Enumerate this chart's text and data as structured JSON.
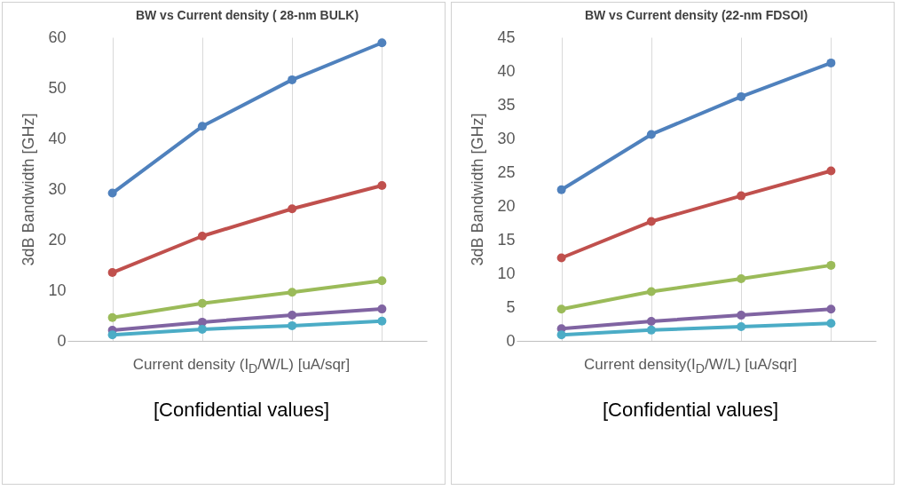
{
  "chart_data": [
    {
      "type": "line",
      "title": "BW vs Current density ( 28-nm BULK)",
      "xlabel": "Current density (I$_{D}$/W/L) [uA/sqr]",
      "ylabel": "3dB Bandwidth [GHz]",
      "annotations": [
        "[Confidential values]"
      ],
      "categories": [
        null,
        null,
        null,
        null
      ],
      "ylim": [
        0,
        60
      ],
      "yticks": [
        0,
        10,
        20,
        30,
        40,
        50,
        60
      ],
      "grid": "x",
      "legend": false,
      "marker": "circle",
      "line_style": "solid",
      "tick_labels": "y",
      "series": [
        {
          "color": "#4f81bd",
          "values": [
            29.2,
            42.4,
            51.6,
            58.9
          ]
        },
        {
          "color": "#c0504d",
          "values": [
            13.5,
            20.7,
            26.1,
            30.7
          ]
        },
        {
          "color": "#9bbb59",
          "values": [
            4.6,
            7.4,
            9.6,
            11.9
          ]
        },
        {
          "color": "#8064a2",
          "values": [
            2.1,
            3.7,
            5.1,
            6.3
          ]
        },
        {
          "color": "#4bacc6",
          "values": [
            1.2,
            2.3,
            3.0,
            3.9
          ]
        }
      ]
    },
    {
      "type": "line",
      "title": "BW vs Current density (22-nm FDSOI)",
      "xlabel": "Current density(I$_{D}$/W/L) [uA/sqr]",
      "ylabel": "3dB  Bandwidth [GHz]",
      "annotations": [
        "[Confidential values]"
      ],
      "categories": [
        null,
        null,
        null,
        null
      ],
      "ylim": [
        0,
        45
      ],
      "yticks": [
        0,
        5,
        10,
        15,
        20,
        25,
        30,
        35,
        40,
        45
      ],
      "grid": "x",
      "legend": false,
      "marker": "circle",
      "line_style": "solid",
      "tick_labels": "y",
      "series": [
        {
          "color": "#4f81bd",
          "values": [
            22.4,
            30.6,
            36.2,
            41.2
          ]
        },
        {
          "color": "#c0504d",
          "values": [
            12.3,
            17.7,
            21.5,
            25.2
          ]
        },
        {
          "color": "#9bbb59",
          "values": [
            4.7,
            7.3,
            9.2,
            11.2
          ]
        },
        {
          "color": "#8064a2",
          "values": [
            1.8,
            2.9,
            3.8,
            4.7
          ]
        },
        {
          "color": "#4bacc6",
          "values": [
            0.9,
            1.6,
            2.1,
            2.6
          ]
        }
      ]
    }
  ]
}
